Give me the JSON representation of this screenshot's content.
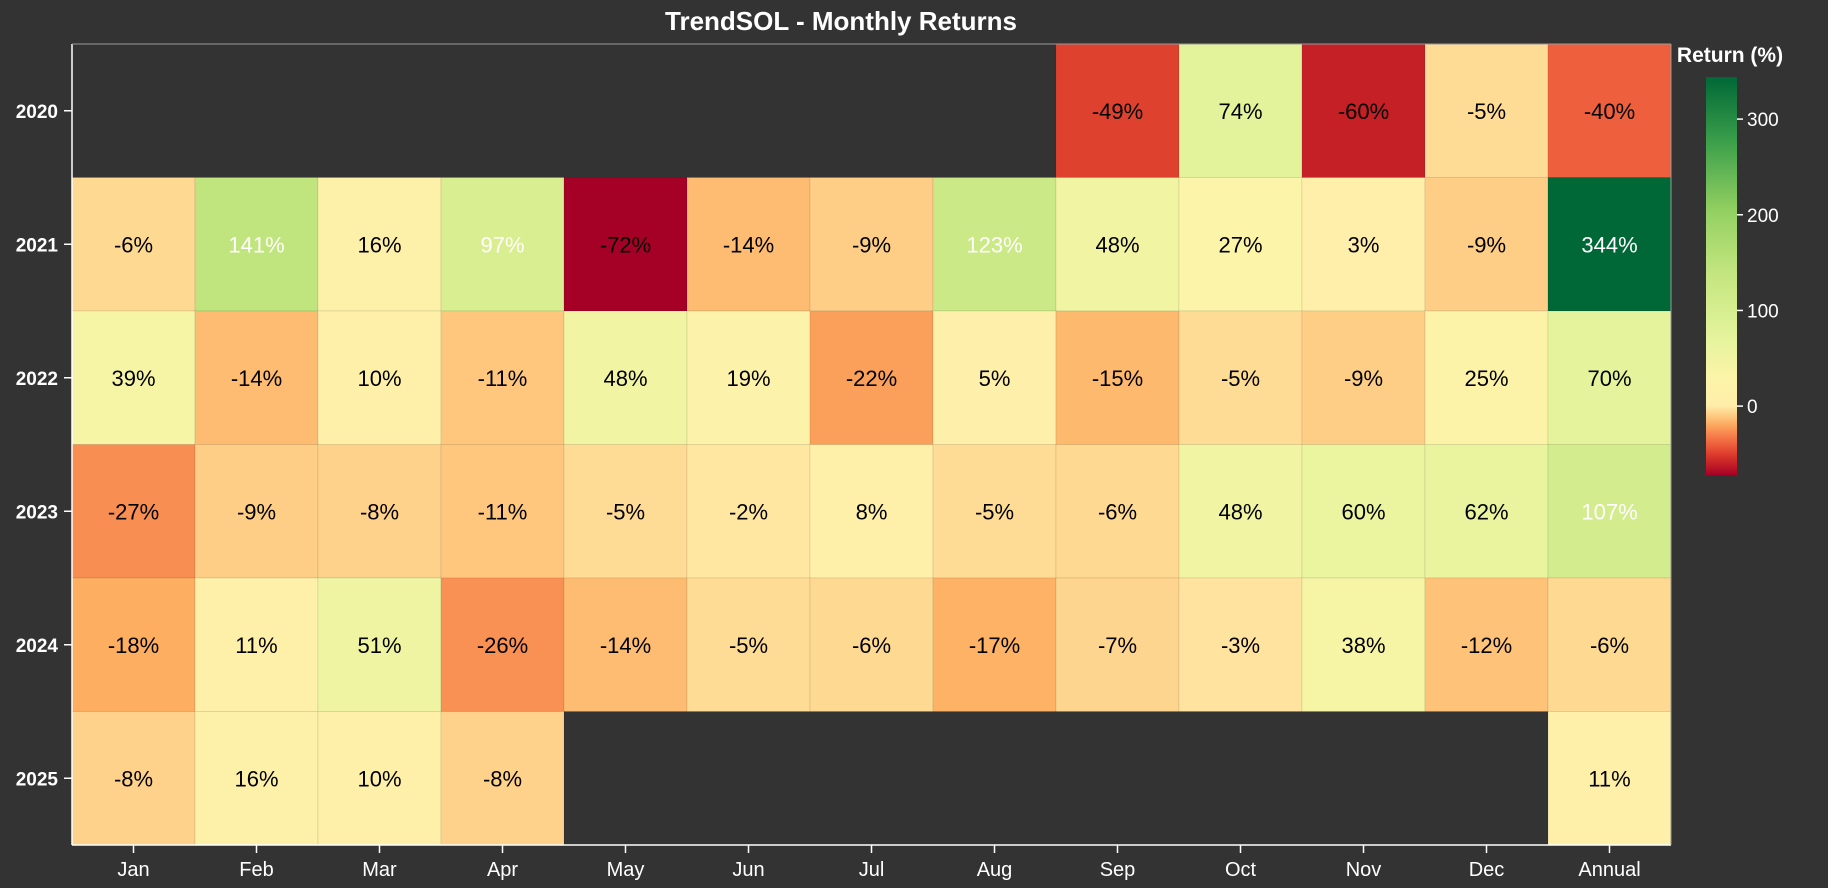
{
  "chart_data": {
    "type": "heatmap",
    "title": "TrendSOL - Monthly Returns",
    "x_categories": [
      "Jan",
      "Feb",
      "Mar",
      "Apr",
      "May",
      "Jun",
      "Jul",
      "Aug",
      "Sep",
      "Oct",
      "Nov",
      "Dec",
      "Annual"
    ],
    "y_categories": [
      "2020",
      "2021",
      "2022",
      "2023",
      "2024",
      "2025"
    ],
    "values": [
      [
        null,
        null,
        null,
        null,
        null,
        null,
        null,
        null,
        -49,
        74,
        -60,
        -5,
        -40
      ],
      [
        -6,
        141,
        16,
        97,
        -72,
        -14,
        -9,
        123,
        48,
        27,
        3,
        -9,
        344
      ],
      [
        39,
        -14,
        10,
        -11,
        48,
        19,
        -22,
        5,
        -15,
        -5,
        -9,
        25,
        70
      ],
      [
        -27,
        -9,
        -8,
        -11,
        -5,
        -2,
        8,
        -5,
        -6,
        48,
        60,
        62,
        107
      ],
      [
        -18,
        11,
        51,
        -26,
        -14,
        -5,
        -6,
        -17,
        -7,
        -3,
        38,
        -12,
        -6
      ],
      [
        -8,
        16,
        10,
        -8,
        null,
        null,
        null,
        null,
        null,
        null,
        null,
        null,
        11
      ]
    ],
    "value_suffix": "%",
    "colorbar": {
      "title": "Return (%)",
      "range": [
        -72,
        344
      ],
      "ticks": [
        0,
        100,
        200,
        300
      ],
      "colorscale": "RdYlGn",
      "placement": "right"
    },
    "missing_color": "#333333"
  }
}
